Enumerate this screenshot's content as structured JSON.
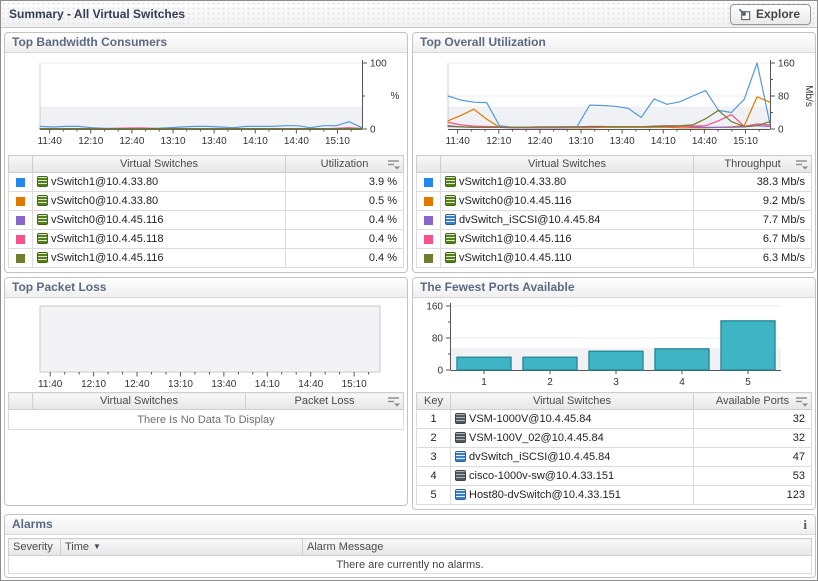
{
  "page": {
    "title": "Summary - All Virtual Switches"
  },
  "topbar": {
    "explore_label": "Explore"
  },
  "panels": {
    "bandwidth": {
      "title": "Top Bandwidth Consumers",
      "table": {
        "col_switch": "Virtual Switches",
        "col_value": "Utilization",
        "rows": [
          {
            "color": "#2288ee",
            "icon": "vswitch",
            "name": "vSwitch1@10.4.33.80",
            "value": "3.9 %"
          },
          {
            "color": "#e07800",
            "icon": "vswitch",
            "name": "vSwitch0@10.4.33.80",
            "value": "0.5 %"
          },
          {
            "color": "#8866cc",
            "icon": "vswitch",
            "name": "vSwitch0@10.4.45.116",
            "value": "0.4 %"
          },
          {
            "color": "#f5538a",
            "icon": "vswitch",
            "name": "vSwitch1@10.4.45.118",
            "value": "0.4 %"
          },
          {
            "color": "#6f7d2c",
            "icon": "vswitch",
            "name": "vSwitch1@10.4.45.116",
            "value": "0.4 %"
          }
        ]
      }
    },
    "utilization": {
      "title": "Top Overall Utilization",
      "table": {
        "col_switch": "Virtual Switches",
        "col_value": "Throughput",
        "rows": [
          {
            "color": "#2288ee",
            "icon": "vswitch",
            "name": "vSwitch1@10.4.33.80",
            "value": "38.3 Mb/s"
          },
          {
            "color": "#e07800",
            "icon": "vswitch",
            "name": "vSwitch0@10.4.45.116",
            "value": "9.2 Mb/s"
          },
          {
            "color": "#8866cc",
            "icon": "dvswitch",
            "name": "dvSwitch_iSCSI@10.4.45.84",
            "value": "7.7 Mb/s"
          },
          {
            "color": "#f5538a",
            "icon": "vswitch",
            "name": "vSwitch1@10.4.45.116",
            "value": "6.7 Mb/s"
          },
          {
            "color": "#6f7d2c",
            "icon": "vswitch",
            "name": "vSwitch1@10.4.45.110",
            "value": "6.3 Mb/s"
          }
        ]
      }
    },
    "packetloss": {
      "title": "Top Packet Loss",
      "table": {
        "col_switch": "Virtual Switches",
        "col_value": "Packet Loss",
        "empty_message": "There Is No Data To Display"
      }
    },
    "ports": {
      "title": "The Fewest Ports Available",
      "table": {
        "col_key": "Key",
        "col_switch": "Virtual Switches",
        "col_value": "Available Ports",
        "rows": [
          {
            "key": "1",
            "icon": "vsm",
            "name": "VSM-1000V@10.4.45.84",
            "value": "32"
          },
          {
            "key": "2",
            "icon": "vsm",
            "name": "VSM-100V_02@10.4.45.84",
            "value": "32"
          },
          {
            "key": "3",
            "icon": "dvswitch",
            "name": "dvSwitch_iSCSI@10.4.45.84",
            "value": "47"
          },
          {
            "key": "4",
            "icon": "vsm",
            "name": "cisco-1000v-sw@10.4.33.151",
            "value": "53"
          },
          {
            "key": "5",
            "icon": "dvswitch",
            "name": "Host80-dvSwitch@10.4.33.151",
            "value": "123"
          }
        ]
      }
    },
    "alarms": {
      "title": "Alarms",
      "info_icon": "i",
      "table": {
        "col_severity": "Severity",
        "col_time": "Time",
        "col_message": "Alarm Message",
        "empty_message": "There are currently no alarms."
      }
    }
  },
  "chart_data": [
    {
      "id": "bandwidth",
      "type": "line",
      "title": "Top Bandwidth Consumers",
      "xlabel": "",
      "ylabel": "%",
      "ylim": [
        0,
        100
      ],
      "y_ticks": [
        0,
        100
      ],
      "y_minor": [
        50
      ],
      "x_ticks": [
        "11:40",
        "12:10",
        "12:40",
        "13:10",
        "13:40",
        "14:10",
        "14:40",
        "15:10"
      ],
      "grid": false,
      "legend_position": "table-below",
      "series": [
        {
          "name": "vSwitch1@10.4.33.80",
          "color": "#5599dd",
          "values": [
            4,
            3,
            4,
            4,
            2,
            1,
            1,
            1,
            1,
            1,
            2,
            3,
            4,
            4,
            3,
            2,
            4,
            4,
            4,
            5,
            5,
            2,
            5,
            5,
            11,
            2
          ]
        },
        {
          "name": "vSwitch0@10.4.33.80",
          "color": "#e07800",
          "values": [
            0.3,
            0.3,
            0.3,
            0.3,
            0.3,
            0.3,
            0.3,
            0.3,
            0.3,
            0.3,
            0.3,
            0.3,
            0.3,
            0.3,
            0.3,
            0.3,
            0.3,
            0.3,
            0.3,
            0.3,
            0.3,
            0.3,
            0.3,
            0.3,
            0.3,
            0.3
          ]
        },
        {
          "name": "vSwitch0@10.4.45.116",
          "color": "#8866cc",
          "values": [
            0.3,
            0.3,
            0.3,
            0.3,
            0.3,
            0.3,
            0.3,
            0.3,
            0.3,
            0.3,
            0.3,
            0.3,
            0.3,
            0.3,
            0.3,
            0.3,
            0.3,
            0.3,
            0.3,
            0.3,
            0.3,
            0.3,
            0.3,
            0.3,
            0.3,
            0.3
          ]
        },
        {
          "name": "vSwitch1@10.4.45.118",
          "color": "#f5538a",
          "values": [
            0.5,
            0.5,
            0.5,
            0.5,
            0.5,
            0.5,
            1,
            1.5,
            1.5,
            0.7,
            0.5,
            0.5,
            0.5,
            0.5,
            0.5,
            0.5,
            0.5,
            0.5,
            0.5,
            0.5,
            0.5,
            0.5,
            0.5,
            1,
            2,
            0.7
          ]
        },
        {
          "name": "vSwitch1@10.4.45.116",
          "color": "#6f7d2c",
          "values": [
            0.6,
            0.6,
            0.6,
            0.6,
            0.6,
            0.6,
            0.6,
            0.6,
            0.6,
            0.6,
            0.6,
            0.6,
            0.6,
            0.6,
            0.6,
            0.6,
            0.6,
            0.6,
            0.6,
            0.6,
            0.6,
            0.6,
            0.6,
            0.6,
            0.6,
            0.6
          ]
        }
      ]
    },
    {
      "id": "utilization",
      "type": "line",
      "title": "Top Overall Utilization",
      "xlabel": "",
      "ylabel": "Mb/s",
      "ylim": [
        0,
        160
      ],
      "y_ticks": [
        0,
        80,
        160
      ],
      "y_minor": [
        40,
        120
      ],
      "x_ticks": [
        "11:40",
        "12:10",
        "12:40",
        "13:10",
        "13:40",
        "14:10",
        "14:40",
        "15:10"
      ],
      "grid": false,
      "legend_position": "table-below",
      "series": [
        {
          "name": "vSwitch1@10.4.33.80",
          "color": "#5599dd",
          "values": [
            80,
            70,
            65,
            64,
            8,
            4,
            4,
            4,
            4,
            5,
            5,
            58,
            57,
            55,
            50,
            28,
            73,
            60,
            66,
            80,
            93,
            45,
            40,
            72,
            160,
            12
          ]
        },
        {
          "name": "vSwitch0@10.4.45.116",
          "color": "#e07800",
          "values": [
            20,
            33,
            48,
            24,
            4,
            3,
            3,
            3,
            3,
            3,
            3,
            3,
            4,
            4,
            4,
            4,
            4,
            4,
            3,
            3,
            3,
            4,
            5,
            8,
            78,
            65
          ]
        },
        {
          "name": "dvSwitch_iSCSI@10.4.45.84",
          "color": "#8866cc",
          "values": [
            6,
            5,
            4,
            4,
            4,
            3,
            3,
            3,
            3,
            3,
            4,
            4,
            5,
            5,
            5,
            5,
            7,
            8,
            7,
            5,
            4,
            4,
            4,
            5,
            8,
            6
          ]
        },
        {
          "name": "vSwitch1@10.4.45.116",
          "color": "#f5538a",
          "values": [
            16,
            10,
            7,
            6,
            5,
            4,
            4,
            4,
            4,
            4,
            4,
            4,
            5,
            5,
            5,
            5,
            6,
            6,
            6,
            7,
            8,
            20,
            35,
            6,
            12,
            10
          ]
        },
        {
          "name": "vSwitch1@10.4.45.110",
          "color": "#6f7d2c",
          "values": [
            8,
            5,
            4,
            4,
            4,
            4,
            4,
            5,
            5,
            5,
            5,
            6,
            6,
            5,
            5,
            5,
            6,
            7,
            8,
            10,
            25,
            45,
            18,
            6,
            8,
            18
          ]
        }
      ]
    },
    {
      "id": "packetloss",
      "type": "line",
      "title": "Top Packet Loss",
      "xlabel": "",
      "ylabel": "",
      "plot_bg": true,
      "x_ticks": [
        "11:40",
        "12:10",
        "12:40",
        "13:10",
        "13:40",
        "14:10",
        "14:40",
        "15:10"
      ],
      "series": []
    },
    {
      "id": "ports",
      "type": "bar",
      "title": "The Fewest Ports Available",
      "categories": [
        "1",
        "2",
        "3",
        "4",
        "5"
      ],
      "values": [
        32,
        32,
        47,
        53,
        123
      ],
      "xlabel": "",
      "ylabel": "",
      "ylim": [
        0,
        160
      ],
      "y_ticks": [
        0,
        80,
        160
      ],
      "y_minor": [
        40,
        120
      ],
      "bar_color": "#3fb4c4",
      "bar_border": "#20818f"
    }
  ]
}
